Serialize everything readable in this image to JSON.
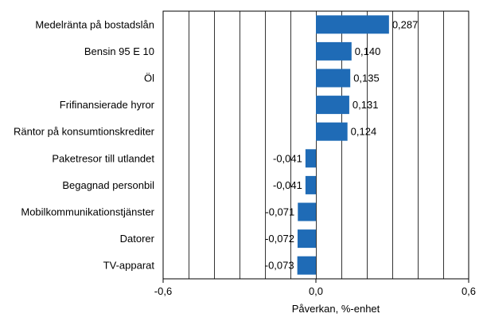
{
  "chart_data": {
    "type": "bar",
    "orientation": "horizontal",
    "title": "",
    "xlabel": "Påverkan, %-enhet",
    "ylabel": "",
    "xlim": [
      -0.6,
      0.6
    ],
    "x_ticks": [
      -0.6,
      0.0,
      0.6
    ],
    "x_tick_labels": [
      "-0,6",
      "0,0",
      "0,6"
    ],
    "grid": "vertical",
    "bar_color": "#1f6bb6",
    "grid_color": "#000000",
    "categories": [
      "Medelränta på bostadslån",
      "Bensin 95 E 10",
      "Öl",
      "Frifinansierade hyror",
      "Räntor på konsumtionskrediter",
      "Paketresor till utlandet",
      "Begagnad personbil",
      "Mobilkommunikationstjänster",
      "Datorer",
      "TV-apparat"
    ],
    "values": [
      0.287,
      0.14,
      0.135,
      0.131,
      0.124,
      -0.041,
      -0.041,
      -0.071,
      -0.072,
      -0.073
    ],
    "value_labels": [
      "0,287",
      "0,140",
      "0,135",
      "0,131",
      "0,124",
      "-0,041",
      "-0,041",
      "-0,071",
      "-0,072",
      "-0,073"
    ]
  }
}
